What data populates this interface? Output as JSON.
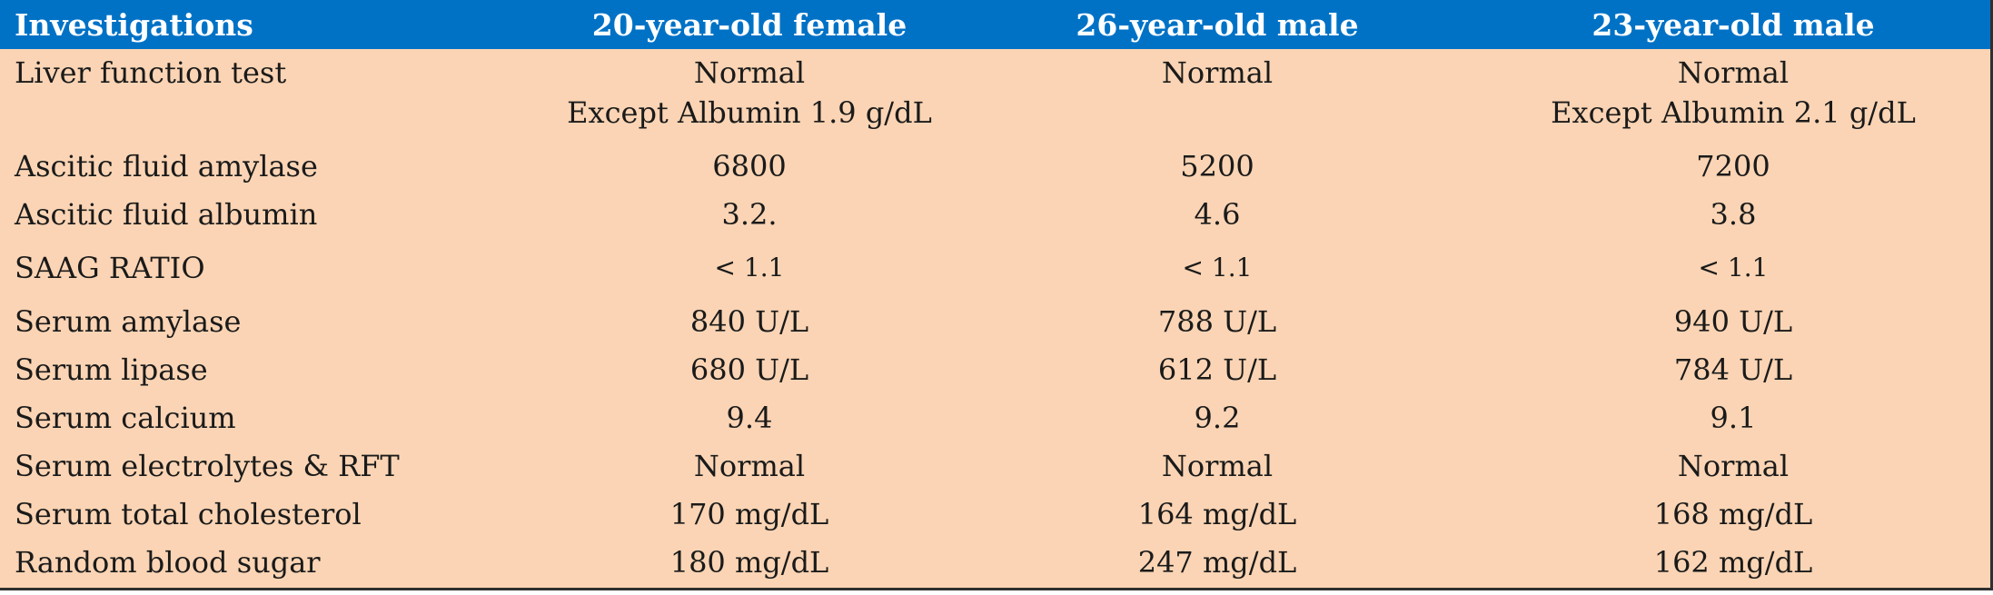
{
  "table": {
    "headers": [
      "Investigations",
      "20-year-old female",
      "26-year-old male",
      "23-year-old male"
    ],
    "rows": [
      {
        "label": "Liver function test",
        "cells": [
          [
            "Normal",
            "Except Albumin 1.9 g/dL"
          ],
          [
            "Normal",
            ""
          ],
          [
            "Normal",
            "Except Albumin 2.1 g/dL"
          ]
        ]
      },
      {
        "label": "Ascitic fluid amylase",
        "cells": [
          "6800",
          "5200",
          "7200"
        ]
      },
      {
        "label": "Ascitic fluid albumin",
        "cells": [
          "3.2.",
          "4.6",
          "3.8"
        ]
      },
      {
        "label": "SAAG RATIO",
        "cells": [
          "< 1.1",
          "< 1.1",
          "< 1.1"
        ]
      },
      {
        "label": "Serum amylase",
        "cells": [
          "840 U/L",
          "788 U/L",
          "940 U/L"
        ]
      },
      {
        "label": "Serum lipase",
        "cells": [
          "680 U/L",
          "612 U/L",
          "784 U/L"
        ]
      },
      {
        "label": "Serum calcium",
        "cells": [
          "9.4",
          "9.2",
          "9.1"
        ]
      },
      {
        "label": "Serum electrolytes & RFT",
        "cells": [
          "Normal",
          "Normal",
          "Normal"
        ]
      },
      {
        "label": "Serum total cholesterol",
        "cells": [
          "170 mg/dL",
          "164 mg/dL",
          "168 mg/dL"
        ]
      },
      {
        "label": "Random blood sugar",
        "cells": [
          "180 mg/dL",
          "247 mg/dL",
          "162 mg/dL"
        ]
      }
    ]
  },
  "colors": {
    "header_bg": "#0072c6",
    "header_text": "#ffffff",
    "body_bg": "#fad4b4",
    "body_text": "#1a1a1a",
    "rule": "#2f2f2f"
  }
}
